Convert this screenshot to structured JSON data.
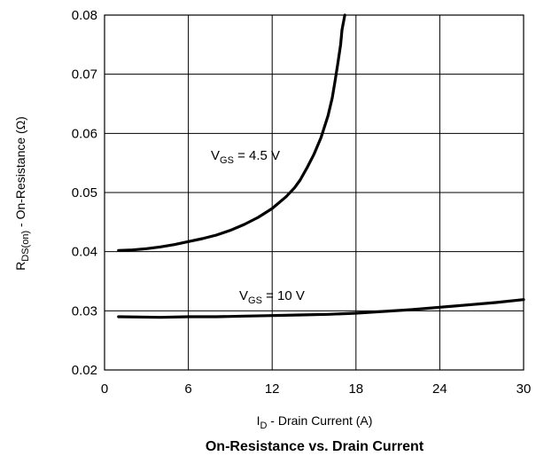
{
  "chart_data": {
    "type": "line",
    "title": "On-Resistance vs. Drain Current",
    "xlabel": {
      "main": "I",
      "sub": "D",
      "rest": " - Drain Current (A)"
    },
    "ylabel": {
      "main": "R",
      "sub": "DS(on)",
      "rest": " - On-Resistance (Ω)"
    },
    "xlim": [
      0,
      30
    ],
    "ylim": [
      0.02,
      0.08
    ],
    "xticks": [
      0,
      6,
      12,
      18,
      24,
      30
    ],
    "xtick_labels": [
      "0",
      "6",
      "12",
      "18",
      "24",
      "30"
    ],
    "yticks": [
      0.02,
      0.03,
      0.04,
      0.05,
      0.06,
      0.07,
      0.08
    ],
    "ytick_labels": [
      "0.02",
      "0.03",
      "0.04",
      "0.05",
      "0.06",
      "0.07",
      "0.08"
    ],
    "grid": true,
    "series": [
      {
        "annotation": {
          "main": "V",
          "sub": "GS",
          "rest": " = 4.5 V"
        },
        "x": [
          1,
          2,
          3,
          4,
          5,
          6,
          7,
          8,
          9,
          10,
          11,
          12,
          13,
          13.6,
          14,
          14.5,
          15,
          15.5,
          16,
          16.3,
          16.5,
          16.7,
          16.9,
          17.0,
          17.2
        ],
        "y": [
          0.0402,
          0.0403,
          0.0405,
          0.0408,
          0.0412,
          0.0417,
          0.0422,
          0.0428,
          0.0436,
          0.0446,
          0.0458,
          0.0473,
          0.0493,
          0.0508,
          0.0521,
          0.0542,
          0.0565,
          0.0593,
          0.063,
          0.066,
          0.0688,
          0.0718,
          0.075,
          0.0775,
          0.08
        ]
      },
      {
        "annotation": {
          "main": "V",
          "sub": "GS",
          "rest": " = 10 V"
        },
        "x": [
          1,
          4,
          6,
          8,
          10,
          12,
          14,
          16,
          18,
          20,
          22,
          24,
          26,
          28,
          30
        ],
        "y": [
          0.029,
          0.0289,
          0.029,
          0.029,
          0.0291,
          0.0292,
          0.0293,
          0.0294,
          0.0296,
          0.0299,
          0.0302,
          0.0306,
          0.031,
          0.0314,
          0.0319
        ]
      }
    ]
  }
}
